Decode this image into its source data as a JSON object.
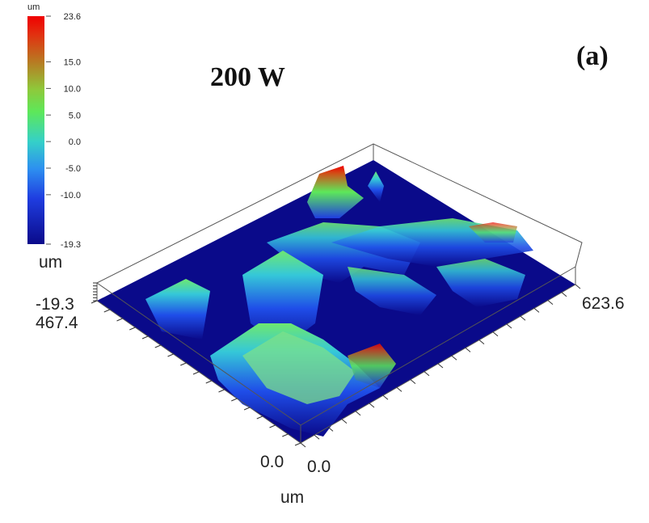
{
  "chart_data": {
    "type": "surface3d",
    "title": "200 W",
    "panel_label": "(a)",
    "colorbar": {
      "unit": "um",
      "min": -19.3,
      "max": 23.6,
      "tick_labels": [
        "23.6",
        "15.0",
        "10.0",
        "5.0",
        "0.0",
        "-5.0",
        "-10.0",
        "-19.3"
      ],
      "tick_values": [
        23.6,
        15.0,
        10.0,
        5.0,
        0.0,
        -5.0,
        -10.0,
        -19.3
      ],
      "colormap": [
        "#0a0a8a",
        "#1f3de0",
        "#2d8ff0",
        "#35d0c8",
        "#5de85a",
        "#8fc83a",
        "#b87a22",
        "#e23010",
        "#f00000"
      ]
    },
    "z_axis": {
      "unit": "um",
      "min_label": "-19.3"
    },
    "y_axis": {
      "max_label": "467.4",
      "min_label": "0.0"
    },
    "x_axis": {
      "unit": "um",
      "min_label": "0.0",
      "max_label": "623.6"
    },
    "ranges": {
      "x": [
        0.0,
        623.6
      ],
      "y": [
        0.0,
        467.4
      ],
      "z": [
        -19.3,
        23.6
      ]
    }
  }
}
